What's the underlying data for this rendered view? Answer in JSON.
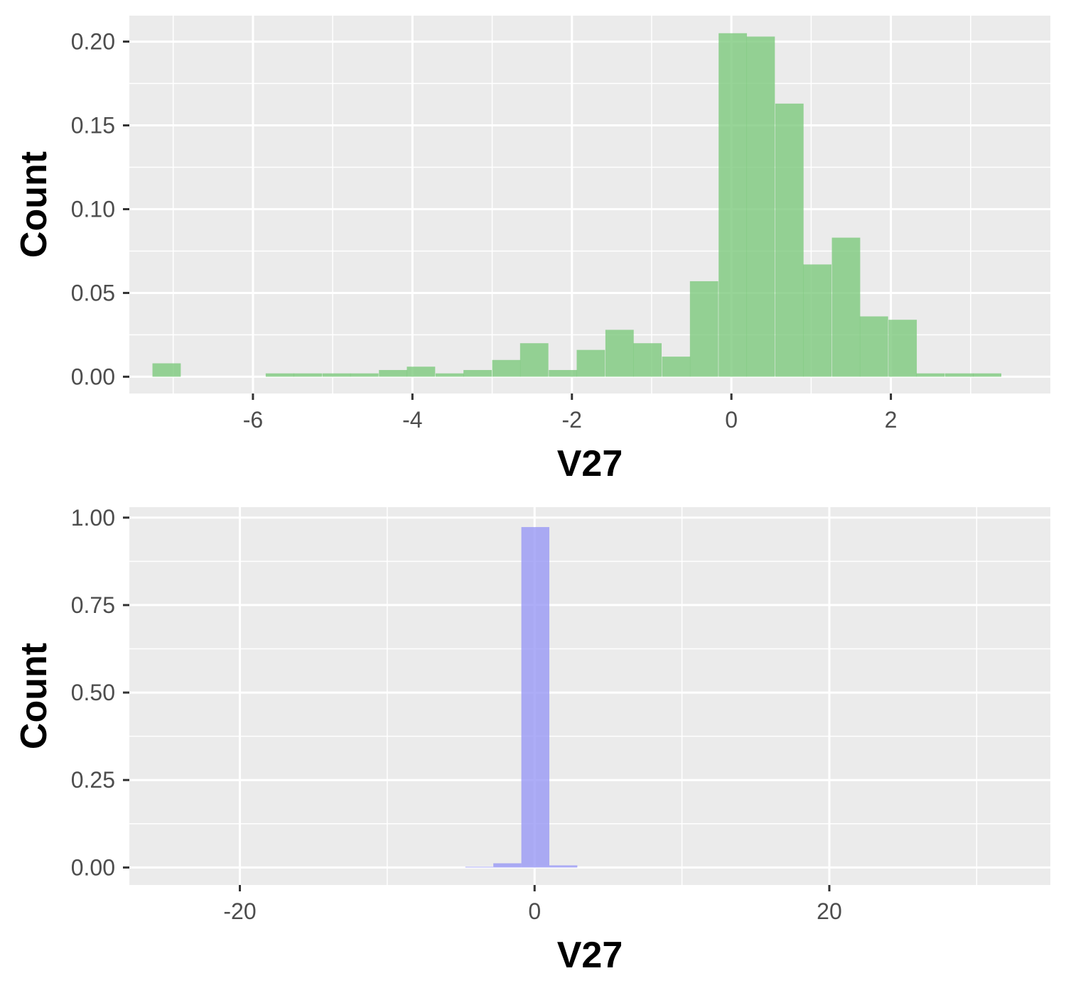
{
  "chart_data": [
    {
      "type": "bar",
      "subtype": "histogram",
      "xlabel": "V27",
      "ylabel": "Count",
      "fill_color": "#7dc97d",
      "panel_bg": "#ebebeb",
      "grid": true,
      "xlim": [
        -7.55,
        4.0
      ],
      "ylim": [
        -0.01,
        0.2155
      ],
      "x_ticks": [
        -6,
        -4,
        -2,
        0,
        2
      ],
      "x_tick_labels": [
        "-6",
        "-4",
        "-2",
        "0",
        "2"
      ],
      "y_ticks": [
        0.0,
        0.05,
        0.1,
        0.15,
        0.2
      ],
      "y_tick_labels": [
        "0.00",
        "0.05",
        "0.10",
        "0.15",
        "0.20"
      ],
      "bin_width": 0.355,
      "bins": [
        {
          "x0": -7.26,
          "value": 0.008
        },
        {
          "x0": -5.84,
          "value": 0.002
        },
        {
          "x0": -5.49,
          "value": 0.002
        },
        {
          "x0": -5.13,
          "value": 0.002
        },
        {
          "x0": -4.78,
          "value": 0.002
        },
        {
          "x0": -4.42,
          "value": 0.004
        },
        {
          "x0": -4.07,
          "value": 0.006
        },
        {
          "x0": -3.71,
          "value": 0.002
        },
        {
          "x0": -3.36,
          "value": 0.004
        },
        {
          "x0": -3.0,
          "value": 0.01
        },
        {
          "x0": -2.65,
          "value": 0.02
        },
        {
          "x0": -2.29,
          "value": 0.004
        },
        {
          "x0": -1.94,
          "value": 0.016
        },
        {
          "x0": -1.58,
          "value": 0.028
        },
        {
          "x0": -1.23,
          "value": 0.02
        },
        {
          "x0": -0.87,
          "value": 0.012
        },
        {
          "x0": -0.52,
          "value": 0.057
        },
        {
          "x0": -0.16,
          "value": 0.205
        },
        {
          "x0": 0.19,
          "value": 0.203
        },
        {
          "x0": 0.55,
          "value": 0.163
        },
        {
          "x0": 0.9,
          "value": 0.067
        },
        {
          "x0": 1.26,
          "value": 0.083
        },
        {
          "x0": 1.61,
          "value": 0.036
        },
        {
          "x0": 1.97,
          "value": 0.034
        },
        {
          "x0": 2.32,
          "value": 0.002
        },
        {
          "x0": 2.68,
          "value": 0.002
        },
        {
          "x0": 3.03,
          "value": 0.002
        }
      ]
    },
    {
      "type": "bar",
      "subtype": "histogram",
      "xlabel": "V27",
      "ylabel": "Count",
      "fill_color": "#9999f5",
      "panel_bg": "#ebebeb",
      "grid": true,
      "xlim": [
        -27.5,
        35.0
      ],
      "ylim": [
        -0.05,
        1.03
      ],
      "x_ticks": [
        -20,
        0,
        20
      ],
      "x_tick_labels": [
        "-20",
        "0",
        "20"
      ],
      "y_ticks": [
        0.0,
        0.25,
        0.5,
        0.75,
        1.0
      ],
      "y_tick_labels": [
        "0.00",
        "0.25",
        "0.50",
        "0.75",
        "1.00"
      ],
      "bin_width": 1.9,
      "bins": [
        {
          "x0": -4.7,
          "value": 0.002
        },
        {
          "x0": -2.8,
          "value": 0.012
        },
        {
          "x0": -0.9,
          "value": 0.973
        },
        {
          "x0": 1.0,
          "value": 0.006
        }
      ]
    }
  ]
}
